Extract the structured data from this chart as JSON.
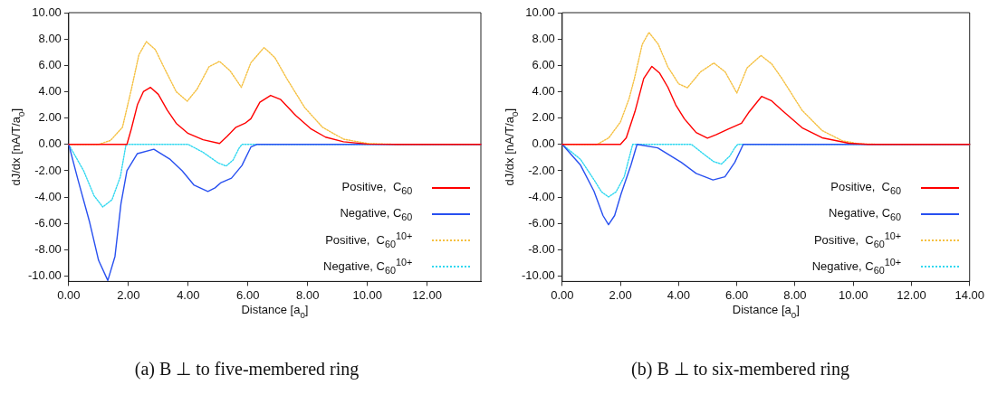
{
  "chart_data": [
    {
      "type": "line",
      "xlabel": "Distance [a$_{0}$]",
      "ylabel": "dJ/dx [nA/T/a$_{0}$]",
      "legend": "bottom right",
      "grid": false,
      "marker": "none",
      "xlim": [
        0,
        13.8
      ],
      "ylim": [
        -10.4,
        10
      ],
      "xticks": [
        {
          "value": 0,
          "label": "0.00"
        },
        {
          "value": 2,
          "label": "2.00"
        },
        {
          "value": 4,
          "label": "4.00"
        },
        {
          "value": 6,
          "label": "6.00"
        },
        {
          "value": 8,
          "label": "8.00"
        },
        {
          "value": 10,
          "label": "10.00"
        },
        {
          "value": 12,
          "label": "12.00"
        }
      ],
      "yticks": [
        {
          "value": -10,
          "label": "-10.00"
        },
        {
          "value": -8,
          "label": "-8.00"
        },
        {
          "value": -6,
          "label": "-6.00"
        },
        {
          "value": -4,
          "label": "-4.00"
        },
        {
          "value": -2,
          "label": "-2.00"
        },
        {
          "value": 0,
          "label": "0.00"
        },
        {
          "value": 2,
          "label": "2.00"
        },
        {
          "value": 4,
          "label": "4.00"
        },
        {
          "value": 6,
          "label": "6.00"
        },
        {
          "value": 8,
          "label": "8.00"
        },
        {
          "value": 10,
          "label": "10.00"
        }
      ],
      "annotations": [
        "(a) B ⊥ to five-membered ring"
      ],
      "series": [
        {
          "name": "Positive,  C$_{60}$",
          "color": "#ff0000",
          "line_style": "solid",
          "x": [
            0,
            1.95,
            2.1,
            2.3,
            2.5,
            2.74,
            3.0,
            3.3,
            3.6,
            4.0,
            4.5,
            5.05,
            5.3,
            5.6,
            5.9,
            6.1,
            6.4,
            6.76,
            7.1,
            7.6,
            8.1,
            8.6,
            9.2,
            10,
            11,
            13.8
          ],
          "values": [
            0,
            0,
            1.2,
            3.0,
            4.0,
            4.33,
            3.8,
            2.6,
            1.6,
            0.83,
            0.35,
            0.07,
            0.6,
            1.3,
            1.6,
            1.95,
            3.2,
            3.72,
            3.4,
            2.2,
            1.2,
            0.55,
            0.2,
            0.03,
            0,
            0
          ]
        },
        {
          "name": "Negative, C$_{60}$",
          "color": "#2850f0",
          "line_style": "solid",
          "x": [
            0,
            0.3,
            0.7,
            1.0,
            1.31,
            1.55,
            1.75,
            1.95,
            2.3,
            2.85,
            3.4,
            3.8,
            4.2,
            4.66,
            4.9,
            5.1,
            5.45,
            5.8,
            6.1,
            6.3,
            13.8
          ],
          "values": [
            0,
            -2.6,
            -5.9,
            -8.8,
            -10.33,
            -8.5,
            -4.5,
            -2.0,
            -0.7,
            -0.37,
            -1.14,
            -2.0,
            -3.1,
            -3.57,
            -3.3,
            -2.9,
            -2.56,
            -1.6,
            -0.2,
            0,
            0
          ]
        },
        {
          "name": "Positive,  C$_{60}$$^{10+}$",
          "color": "#f5c040",
          "line_style": "dotted",
          "x": [
            0,
            1.0,
            1.4,
            1.8,
            2.1,
            2.35,
            2.6,
            2.9,
            3.2,
            3.6,
            3.97,
            4.3,
            4.7,
            5.05,
            5.4,
            5.78,
            6.1,
            6.54,
            6.9,
            7.3,
            7.9,
            8.5,
            9.2,
            10,
            11,
            13.8
          ],
          "values": [
            0,
            0,
            0.3,
            1.3,
            4.2,
            6.8,
            7.8,
            7.2,
            5.8,
            4.0,
            3.28,
            4.2,
            5.9,
            6.3,
            5.6,
            4.33,
            6.2,
            7.35,
            6.6,
            5.0,
            2.8,
            1.3,
            0.4,
            0.07,
            0,
            0
          ]
        },
        {
          "name": "Negative, C$_{60}$$^{10+}$",
          "color": "#30d8f0",
          "line_style": "dotted",
          "x": [
            0,
            0.5,
            0.85,
            1.14,
            1.45,
            1.73,
            1.92,
            4.0,
            4.5,
            5.0,
            5.27,
            5.5,
            5.7,
            5.8,
            13.8
          ],
          "values": [
            0,
            -2.0,
            -3.9,
            -4.75,
            -4.2,
            -2.45,
            0,
            0,
            -0.6,
            -1.4,
            -1.64,
            -1.2,
            -0.3,
            0,
            0
          ]
        }
      ]
    },
    {
      "type": "line",
      "xlabel": "Distance [a$_{0}$]",
      "ylabel": "dJ/dx [nA/T/a$_{0}$]",
      "legend": "bottom right",
      "grid": false,
      "marker": "none",
      "xlim": [
        0,
        14
      ],
      "ylim": [
        -10.4,
        10
      ],
      "xticks": [
        {
          "value": 0,
          "label": "0.00"
        },
        {
          "value": 2,
          "label": "2.00"
        },
        {
          "value": 4,
          "label": "4.00"
        },
        {
          "value": 6,
          "label": "6.00"
        },
        {
          "value": 8,
          "label": "8.00"
        },
        {
          "value": 10,
          "label": "10.00"
        },
        {
          "value": 12,
          "label": "12.00"
        },
        {
          "value": 14,
          "label": "14.00"
        }
      ],
      "yticks": [
        {
          "value": -10,
          "label": "-10.00"
        },
        {
          "value": -8,
          "label": "-8.00"
        },
        {
          "value": -6,
          "label": "-6.00"
        },
        {
          "value": -4,
          "label": "-4.00"
        },
        {
          "value": -2,
          "label": "-2.00"
        },
        {
          "value": 0,
          "label": "0.00"
        },
        {
          "value": 2,
          "label": "2.00"
        },
        {
          "value": 4,
          "label": "4.00"
        },
        {
          "value": 6,
          "label": "6.00"
        },
        {
          "value": 8,
          "label": "8.00"
        },
        {
          "value": 10,
          "label": "10.00"
        }
      ],
      "annotations": [
        "(b) B ⊥ to six-membered ring"
      ],
      "series": [
        {
          "name": "Positive,  C$_{60}$",
          "color": "#ff0000",
          "line_style": "solid",
          "x": [
            0,
            2.0,
            2.2,
            2.5,
            2.8,
            3.08,
            3.35,
            3.63,
            3.9,
            4.2,
            4.6,
            4.99,
            5.3,
            5.7,
            6.16,
            6.4,
            6.85,
            7.2,
            7.55,
            8.24,
            8.93,
            9.85,
            10.5,
            14
          ],
          "values": [
            0,
            0,
            0.5,
            2.5,
            5.0,
            5.92,
            5.4,
            4.34,
            3.0,
            1.93,
            0.9,
            0.48,
            0.75,
            1.16,
            1.6,
            2.4,
            3.64,
            3.3,
            2.59,
            1.27,
            0.5,
            0.09,
            0,
            0
          ]
        },
        {
          "name": "Negative, C$_{60}$",
          "color": "#2850f0",
          "line_style": "solid",
          "x": [
            0,
            0.63,
            1.09,
            1.4,
            1.59,
            1.8,
            2.02,
            2.36,
            2.57,
            3.28,
            4.09,
            4.6,
            5.18,
            5.59,
            5.93,
            6.22,
            14
          ],
          "values": [
            0,
            -1.58,
            -3.55,
            -5.4,
            -6.1,
            -5.4,
            -3.77,
            -1.58,
            0,
            -0.26,
            -1.36,
            -2.2,
            -2.7,
            -2.46,
            -1.36,
            0,
            0
          ]
        },
        {
          "name": "Positive,  C$_{60}$$^{10+}$",
          "color": "#f5c040",
          "line_style": "dotted",
          "x": [
            0,
            1.2,
            1.6,
            2.0,
            2.3,
            2.48,
            2.75,
            2.98,
            3.3,
            3.63,
            4.0,
            4.3,
            4.75,
            5.21,
            5.6,
            6.0,
            6.35,
            6.83,
            7.2,
            7.55,
            8.24,
            8.93,
            9.62,
            10.2,
            11,
            14
          ],
          "values": [
            0,
            0,
            0.5,
            1.7,
            3.5,
            5.0,
            7.6,
            8.5,
            7.6,
            5.88,
            4.6,
            4.3,
            5.5,
            6.18,
            5.5,
            3.9,
            5.8,
            6.75,
            6.1,
            5.0,
            2.59,
            1.05,
            0.28,
            0.04,
            0,
            0
          ]
        },
        {
          "name": "Negative, C$_{60}$$^{10+}$",
          "color": "#30d8f0",
          "line_style": "dotted",
          "x": [
            0,
            0.63,
            1.09,
            1.35,
            1.59,
            1.85,
            2.13,
            2.42,
            4.44,
            4.9,
            5.2,
            5.47,
            5.75,
            5.93,
            6.03,
            14
          ],
          "values": [
            0,
            -1.14,
            -2.68,
            -3.6,
            -3.99,
            -3.6,
            -2.45,
            0,
            0,
            -0.8,
            -1.3,
            -1.49,
            -0.9,
            -0.26,
            0,
            0
          ]
        }
      ]
    }
  ]
}
